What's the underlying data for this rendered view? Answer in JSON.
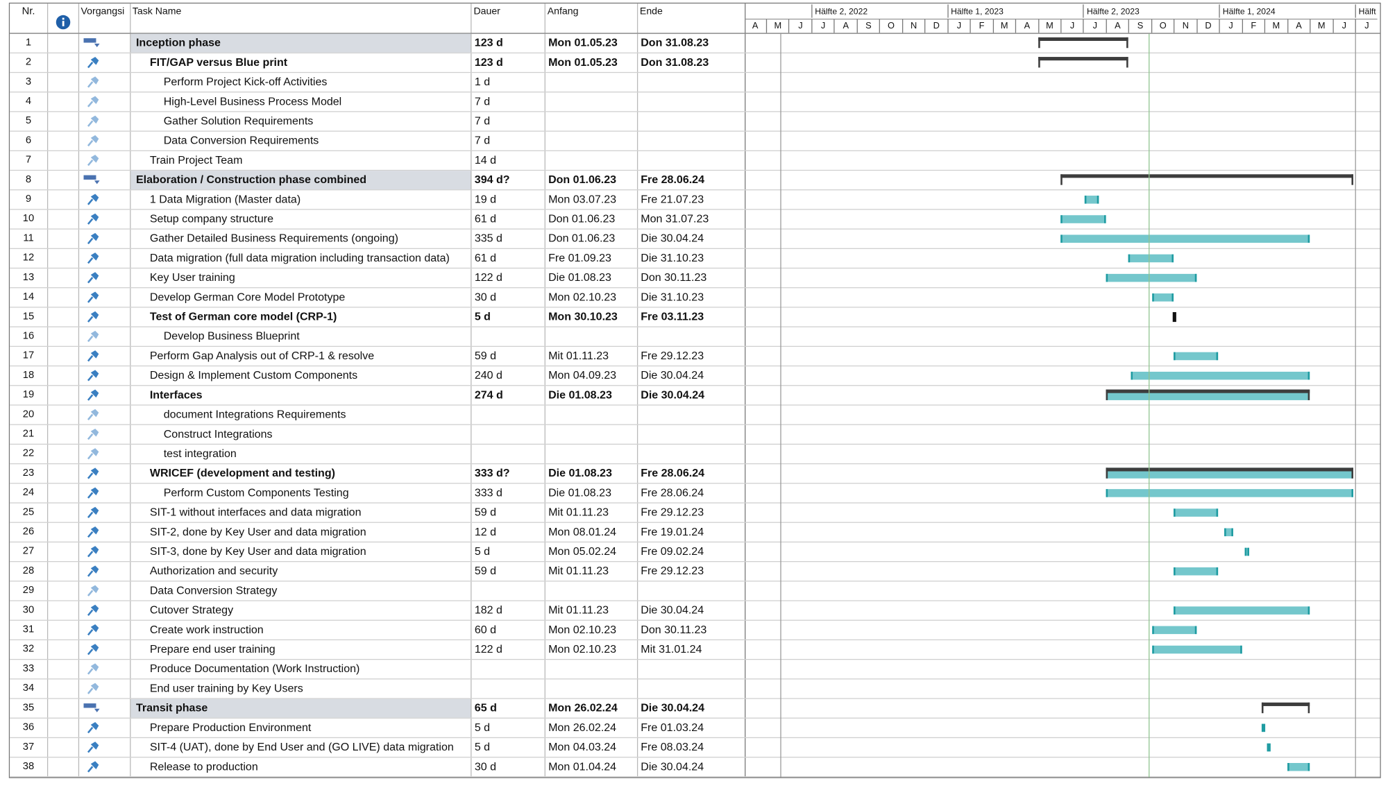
{
  "columns": [
    "Nr.",
    "Vorgangsi",
    "Task Name",
    "Dauer",
    "Anfang",
    "Ende"
  ],
  "timescale": {
    "halves": [
      "Hälfte 2, 2022",
      "Hälfte 1, 2023",
      "Hälfte 2, 2023",
      "Hälfte 1, 2024",
      "Hälft"
    ],
    "months": [
      "A",
      "M",
      "J",
      "J",
      "A",
      "S",
      "O",
      "N",
      "D",
      "J",
      "F",
      "M",
      "A",
      "M",
      "J",
      "J",
      "A",
      "S",
      "O",
      "N",
      "D",
      "J",
      "F",
      "M",
      "A",
      "M",
      "J",
      "J"
    ]
  },
  "rows": [
    {
      "nr": "1",
      "name": "Inception phase",
      "duration": "123 d",
      "start": "Mon 01.05.23",
      "end": "Don 31.08.23",
      "level": 0,
      "kind": "summary"
    },
    {
      "nr": "2",
      "name": "FIT/GAP versus Blue print",
      "duration": "123 d",
      "start": "Mon 01.05.23",
      "end": "Don 31.08.23",
      "level": 1,
      "kind": "summary"
    },
    {
      "nr": "3",
      "name": "Perform Project Kick-off Activities",
      "duration": "1 d",
      "level": 2,
      "kind": "task"
    },
    {
      "nr": "4",
      "name": "High-Level Business Process Model",
      "duration": "7 d",
      "level": 2,
      "kind": "task"
    },
    {
      "nr": "5",
      "name": "Gather Solution Requirements",
      "duration": "7 d",
      "level": 2,
      "kind": "task"
    },
    {
      "nr": "6",
      "name": "Data Conversion Requirements",
      "duration": "7 d",
      "level": 2,
      "kind": "task"
    },
    {
      "nr": "7",
      "name": "Train Project Team",
      "duration": "14 d",
      "level": 1,
      "kind": "task"
    },
    {
      "nr": "8",
      "name": "Elaboration / Construction phase combined",
      "duration": "394 d?",
      "start": "Don 01.06.23",
      "end": "Fre 28.06.24",
      "level": 0,
      "kind": "summary"
    },
    {
      "nr": "9",
      "name": "1 Data Migration (Master data)",
      "duration": "19 d",
      "start": "Mon 03.07.23",
      "end": "Fre 21.07.23",
      "level": 1,
      "kind": "task"
    },
    {
      "nr": "10",
      "name": "Setup company structure",
      "duration": "61 d",
      "start": "Don 01.06.23",
      "end": "Mon 31.07.23",
      "level": 1,
      "kind": "task"
    },
    {
      "nr": "11",
      "name": "Gather Detailed Business Requirements (ongoing)",
      "duration": "335 d",
      "start": "Don 01.06.23",
      "end": "Die 30.04.24",
      "level": 1,
      "kind": "task"
    },
    {
      "nr": "12",
      "name": "Data migration (full data migration including transaction data)",
      "duration": "61 d",
      "start": "Fre 01.09.23",
      "end": "Die 31.10.23",
      "level": 1,
      "kind": "task"
    },
    {
      "nr": "13",
      "name": "Key User training",
      "duration": "122 d",
      "start": "Die 01.08.23",
      "end": "Don 30.11.23",
      "level": 1,
      "kind": "task"
    },
    {
      "nr": "14",
      "name": "Develop German Core Model Prototype",
      "duration": "30 d",
      "start": "Mon 02.10.23",
      "end": "Die 31.10.23",
      "level": 1,
      "kind": "task"
    },
    {
      "nr": "15",
      "name": "Test of German core model (CRP-1)",
      "duration": "5 d",
      "start": "Mon 30.10.23",
      "end": "Fre 03.11.23",
      "level": 1,
      "kind": "black"
    },
    {
      "nr": "16",
      "name": "Develop Business Blueprint",
      "level": 2,
      "kind": "task"
    },
    {
      "nr": "17",
      "name": "Perform Gap Analysis out of CRP-1 & resolve",
      "duration": "59 d",
      "start": "Mit 01.11.23",
      "end": "Fre 29.12.23",
      "level": 1,
      "kind": "task"
    },
    {
      "nr": "18",
      "name": "Design & Implement Custom Components",
      "duration": "240 d",
      "start": "Mon 04.09.23",
      "end": "Die 30.04.24",
      "level": 1,
      "kind": "task"
    },
    {
      "nr": "19",
      "name": "Interfaces",
      "duration": "274 d",
      "start": "Die 01.08.23",
      "end": "Die 30.04.24",
      "level": 1,
      "kind": "summary-task"
    },
    {
      "nr": "20",
      "name": "document Integrations Requirements",
      "level": 2,
      "kind": "task"
    },
    {
      "nr": "21",
      "name": "Construct Integrations",
      "level": 2,
      "kind": "task"
    },
    {
      "nr": "22",
      "name": "test integration",
      "level": 2,
      "kind": "task"
    },
    {
      "nr": "23",
      "name": "WRICEF (development and testing)",
      "duration": "333 d?",
      "start": "Die 01.08.23",
      "end": "Fre 28.06.24",
      "level": 1,
      "kind": "summary-task"
    },
    {
      "nr": "24",
      "name": "Perform Custom Components Testing",
      "duration": "333 d",
      "start": "Die 01.08.23",
      "end": "Fre 28.06.24",
      "level": 2,
      "kind": "task"
    },
    {
      "nr": "25",
      "name": "SIT-1 without interfaces and data migration",
      "duration": "59 d",
      "start": "Mit 01.11.23",
      "end": "Fre 29.12.23",
      "level": 1,
      "kind": "task"
    },
    {
      "nr": "26",
      "name": "SIT-2, done by Key User and data migration",
      "duration": "12 d",
      "start": "Mon 08.01.24",
      "end": "Fre 19.01.24",
      "level": 1,
      "kind": "task"
    },
    {
      "nr": "27",
      "name": "SIT-3, done by Key User and data migration",
      "duration": "5 d",
      "start": "Mon 05.02.24",
      "end": "Fre 09.02.24",
      "level": 1,
      "kind": "task"
    },
    {
      "nr": "28",
      "name": "Authorization and security",
      "duration": "59 d",
      "start": "Mit 01.11.23",
      "end": "Fre 29.12.23",
      "level": 1,
      "kind": "task"
    },
    {
      "nr": "29",
      "name": "Data Conversion Strategy",
      "level": 1,
      "kind": "task"
    },
    {
      "nr": "30",
      "name": "Cutover Strategy",
      "duration": "182 d",
      "start": "Mit 01.11.23",
      "end": "Die 30.04.24",
      "level": 1,
      "kind": "task"
    },
    {
      "nr": "31",
      "name": "Create work instruction",
      "duration": "60 d",
      "start": "Mon 02.10.23",
      "end": "Don 30.11.23",
      "level": 1,
      "kind": "task"
    },
    {
      "nr": "32",
      "name": "Prepare end user training",
      "duration": "122 d",
      "start": "Mon 02.10.23",
      "end": "Mit 31.01.24",
      "level": 1,
      "kind": "task"
    },
    {
      "nr": "33",
      "name": "Produce Documentation (Work Instruction)",
      "level": 1,
      "kind": "task"
    },
    {
      "nr": "34",
      "name": "End user training by Key Users",
      "level": 1,
      "kind": "task"
    },
    {
      "nr": "35",
      "name": "Transit phase",
      "duration": "65 d",
      "start": "Mon 26.02.24",
      "end": "Die 30.04.24",
      "level": 0,
      "kind": "summary"
    },
    {
      "nr": "36",
      "name": "Prepare Production Environment",
      "duration": "5 d",
      "start": "Mon 26.02.24",
      "end": "Fre 01.03.24",
      "level": 1,
      "kind": "task"
    },
    {
      "nr": "37",
      "name": "SIT-4 (UAT), done by End User and (GO LIVE) data migration",
      "duration": "5 d",
      "start": "Mon 04.03.24",
      "end": "Fre 08.03.24",
      "level": 1,
      "kind": "task"
    },
    {
      "nr": "38",
      "name": "Release to production",
      "duration": "30 d",
      "start": "Mon 01.04.24",
      "end": "Die 30.04.24",
      "level": 1,
      "kind": "task"
    }
  ]
}
